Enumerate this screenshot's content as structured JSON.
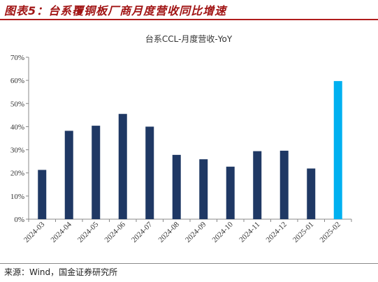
{
  "figure": {
    "caption": "图表5：台系覆铜板厂商月度营收同比增速",
    "source": "来源：Wind，国金证券研究所"
  },
  "colors": {
    "caption": "#a11414",
    "bar_default": "#1f3864",
    "bar_highlight": "#00b0f0"
  },
  "chart_data": {
    "type": "bar",
    "title": "台系CCL-月度营收-YoY",
    "categories": [
      "2024-03",
      "2024-04",
      "2024-05",
      "2024-06",
      "2024-07",
      "2024-08",
      "2024-09",
      "2024-10",
      "2024-11",
      "2024-12",
      "2025-01",
      "2025-02"
    ],
    "values": [
      21.3,
      38.2,
      40.4,
      45.5,
      40.0,
      27.8,
      25.9,
      22.7,
      29.4,
      29.6,
      21.9,
      59.7
    ],
    "unit": "%",
    "highlight_category": "2025-02",
    "ylim": [
      0,
      70
    ],
    "yticks": [
      "0%",
      "10%",
      "20%",
      "30%",
      "40%",
      "50%",
      "60%",
      "70%"
    ],
    "grid": false,
    "legend": "none"
  }
}
